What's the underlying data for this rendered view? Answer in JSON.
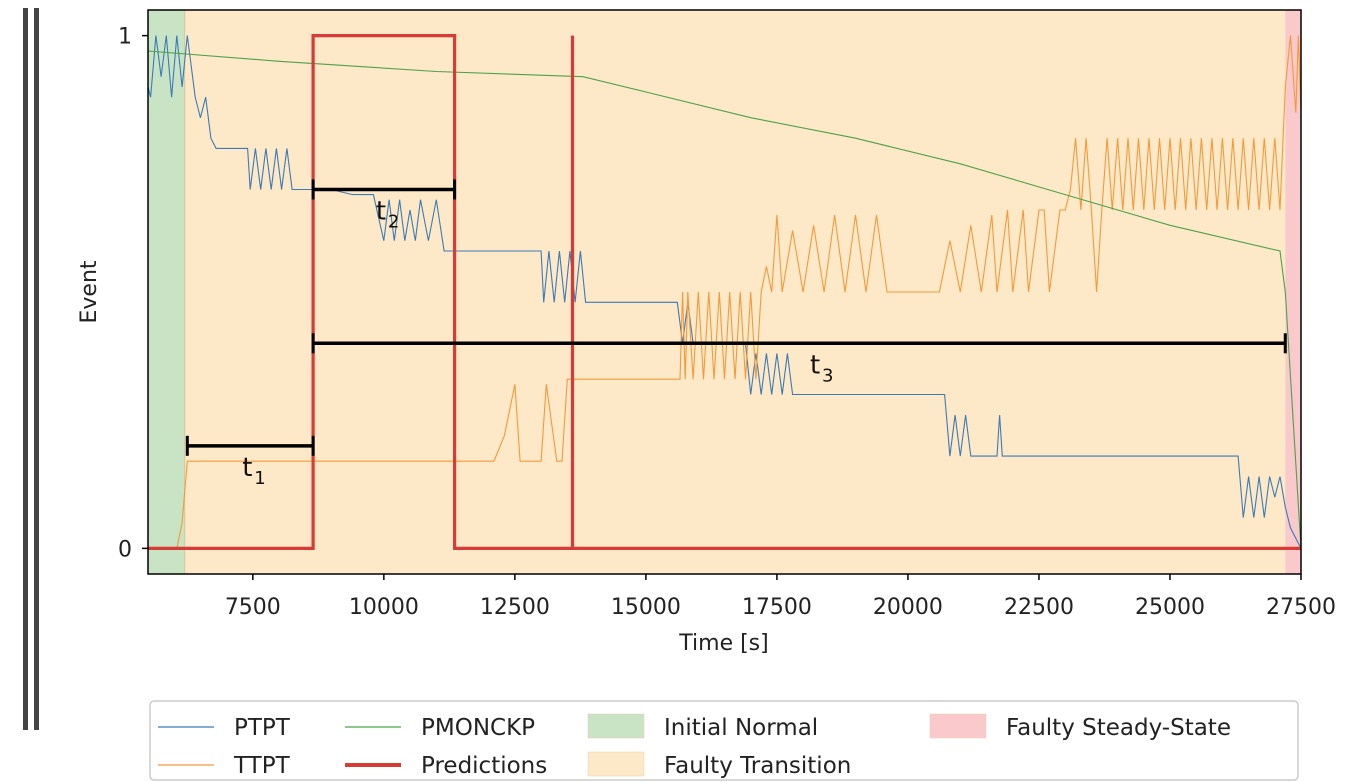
{
  "chart_data": {
    "type": "line",
    "xlabel": "Time [s]",
    "ylabel": "Event",
    "xlim": [
      5500,
      27500
    ],
    "ylim": [
      -0.05,
      1.05
    ],
    "x_ticks": [
      7500,
      10000,
      12500,
      15000,
      17500,
      20000,
      22500,
      25000,
      27500
    ],
    "y_ticks": [
      0,
      1
    ],
    "grid": false,
    "legend_placement": "below",
    "regions": [
      {
        "name": "Initial Normal",
        "x0": 5500,
        "x1": 6200,
        "color": "#c9e3c5"
      },
      {
        "name": "Faulty Transition",
        "x0": 6200,
        "x1": 27200,
        "color": "#fde8c8"
      },
      {
        "name": "Faulty Steady-State",
        "x0": 27200,
        "x1": 27500,
        "color": "#f9c9cc"
      }
    ],
    "series": [
      {
        "name": "PTPT",
        "color": "#3b7bb8",
        "width": 1.1,
        "points": [
          [
            5500,
            0.9
          ],
          [
            5550,
            0.88
          ],
          [
            5650,
            1.0
          ],
          [
            5750,
            0.92
          ],
          [
            5850,
            1.0
          ],
          [
            5950,
            0.88
          ],
          [
            6050,
            1.0
          ],
          [
            6150,
            0.9
          ],
          [
            6250,
            1.0
          ],
          [
            6400,
            0.88
          ],
          [
            6500,
            0.84
          ],
          [
            6600,
            0.88
          ],
          [
            6700,
            0.8
          ],
          [
            6800,
            0.78
          ],
          [
            7000,
            0.78
          ],
          [
            7200,
            0.78
          ],
          [
            7400,
            0.78
          ],
          [
            7450,
            0.7
          ],
          [
            7550,
            0.78
          ],
          [
            7650,
            0.7
          ],
          [
            7750,
            0.78
          ],
          [
            7850,
            0.7
          ],
          [
            7950,
            0.78
          ],
          [
            8050,
            0.7
          ],
          [
            8150,
            0.78
          ],
          [
            8250,
            0.7
          ],
          [
            8400,
            0.7
          ],
          [
            8600,
            0.7
          ],
          [
            9000,
            0.7
          ],
          [
            9400,
            0.69
          ],
          [
            9800,
            0.69
          ],
          [
            10000,
            0.6
          ],
          [
            10100,
            0.68
          ],
          [
            10200,
            0.6
          ],
          [
            10300,
            0.68
          ],
          [
            10400,
            0.6
          ],
          [
            10500,
            0.66
          ],
          [
            10600,
            0.6
          ],
          [
            10700,
            0.68
          ],
          [
            10850,
            0.6
          ],
          [
            11000,
            0.68
          ],
          [
            11150,
            0.58
          ],
          [
            11500,
            0.58
          ],
          [
            12000,
            0.58
          ],
          [
            12500,
            0.58
          ],
          [
            13000,
            0.58
          ],
          [
            13050,
            0.48
          ],
          [
            13150,
            0.58
          ],
          [
            13250,
            0.48
          ],
          [
            13350,
            0.58
          ],
          [
            13450,
            0.48
          ],
          [
            13550,
            0.58
          ],
          [
            13650,
            0.48
          ],
          [
            13750,
            0.58
          ],
          [
            13850,
            0.48
          ],
          [
            14500,
            0.48
          ],
          [
            15000,
            0.48
          ],
          [
            15600,
            0.48
          ],
          [
            15700,
            0.4
          ],
          [
            15800,
            0.48
          ],
          [
            15900,
            0.4
          ],
          [
            16000,
            0.4
          ],
          [
            16500,
            0.4
          ],
          [
            16900,
            0.4
          ],
          [
            17000,
            0.3
          ],
          [
            17100,
            0.38
          ],
          [
            17200,
            0.3
          ],
          [
            17300,
            0.38
          ],
          [
            17400,
            0.3
          ],
          [
            17500,
            0.38
          ],
          [
            17600,
            0.3
          ],
          [
            17700,
            0.38
          ],
          [
            17800,
            0.3
          ],
          [
            18500,
            0.3
          ],
          [
            19500,
            0.3
          ],
          [
            20700,
            0.3
          ],
          [
            20800,
            0.18
          ],
          [
            20900,
            0.26
          ],
          [
            21000,
            0.18
          ],
          [
            21100,
            0.26
          ],
          [
            21200,
            0.18
          ],
          [
            21700,
            0.18
          ],
          [
            21750,
            0.26
          ],
          [
            21800,
            0.18
          ],
          [
            22500,
            0.18
          ],
          [
            23500,
            0.18
          ],
          [
            25000,
            0.18
          ],
          [
            26000,
            0.18
          ],
          [
            26300,
            0.18
          ],
          [
            26400,
            0.06
          ],
          [
            26500,
            0.14
          ],
          [
            26600,
            0.06
          ],
          [
            26700,
            0.14
          ],
          [
            26800,
            0.06
          ],
          [
            26900,
            0.14
          ],
          [
            27000,
            0.1
          ],
          [
            27100,
            0.14
          ],
          [
            27200,
            0.08
          ],
          [
            27300,
            0.04
          ],
          [
            27500,
            0.0
          ]
        ]
      },
      {
        "name": "TTPT",
        "color": "#f39a3b",
        "width": 1.1,
        "points": [
          [
            5500,
            0.0
          ],
          [
            6050,
            0.0
          ],
          [
            6150,
            0.05
          ],
          [
            6250,
            0.17
          ],
          [
            7000,
            0.17
          ],
          [
            8000,
            0.17
          ],
          [
            9000,
            0.17
          ],
          [
            10000,
            0.17
          ],
          [
            11000,
            0.17
          ],
          [
            12000,
            0.17
          ],
          [
            12100,
            0.17
          ],
          [
            12300,
            0.22
          ],
          [
            12500,
            0.32
          ],
          [
            12600,
            0.17
          ],
          [
            12900,
            0.17
          ],
          [
            13000,
            0.17
          ],
          [
            13100,
            0.32
          ],
          [
            13300,
            0.17
          ],
          [
            13400,
            0.17
          ],
          [
            13500,
            0.33
          ],
          [
            13700,
            0.33
          ],
          [
            13800,
            0.33
          ],
          [
            14400,
            0.33
          ],
          [
            15600,
            0.33
          ],
          [
            15650,
            0.33
          ],
          [
            15700,
            0.5
          ],
          [
            15750,
            0.33
          ],
          [
            15800,
            0.5
          ],
          [
            15900,
            0.33
          ],
          [
            16000,
            0.5
          ],
          [
            16100,
            0.33
          ],
          [
            16200,
            0.5
          ],
          [
            16300,
            0.33
          ],
          [
            16400,
            0.5
          ],
          [
            16500,
            0.33
          ],
          [
            16600,
            0.5
          ],
          [
            16700,
            0.33
          ],
          [
            16800,
            0.5
          ],
          [
            16900,
            0.33
          ],
          [
            17000,
            0.5
          ],
          [
            17100,
            0.33
          ],
          [
            17200,
            0.5
          ],
          [
            17300,
            0.55
          ],
          [
            17400,
            0.5
          ],
          [
            17500,
            0.65
          ],
          [
            17600,
            0.5
          ],
          [
            17800,
            0.62
          ],
          [
            18000,
            0.5
          ],
          [
            18200,
            0.63
          ],
          [
            18400,
            0.5
          ],
          [
            18600,
            0.65
          ],
          [
            18800,
            0.5
          ],
          [
            19000,
            0.65
          ],
          [
            19200,
            0.5
          ],
          [
            19400,
            0.65
          ],
          [
            19600,
            0.5
          ],
          [
            19800,
            0.5
          ],
          [
            20000,
            0.5
          ],
          [
            20400,
            0.5
          ],
          [
            20600,
            0.5
          ],
          [
            20800,
            0.6
          ],
          [
            21000,
            0.5
          ],
          [
            21200,
            0.63
          ],
          [
            21400,
            0.5
          ],
          [
            21600,
            0.65
          ],
          [
            21700,
            0.5
          ],
          [
            21900,
            0.66
          ],
          [
            22000,
            0.5
          ],
          [
            22200,
            0.66
          ],
          [
            22300,
            0.5
          ],
          [
            22500,
            0.66
          ],
          [
            22600,
            0.66
          ],
          [
            22700,
            0.5
          ],
          [
            22900,
            0.66
          ],
          [
            23000,
            0.66
          ],
          [
            23100,
            0.7
          ],
          [
            23200,
            0.8
          ],
          [
            23300,
            0.66
          ],
          [
            23400,
            0.8
          ],
          [
            23500,
            0.66
          ],
          [
            23600,
            0.5
          ],
          [
            23700,
            0.66
          ],
          [
            23800,
            0.8
          ],
          [
            23900,
            0.66
          ],
          [
            24000,
            0.8
          ],
          [
            24100,
            0.66
          ],
          [
            24200,
            0.8
          ],
          [
            24300,
            0.66
          ],
          [
            24400,
            0.8
          ],
          [
            24500,
            0.66
          ],
          [
            24600,
            0.8
          ],
          [
            24700,
            0.66
          ],
          [
            24800,
            0.8
          ],
          [
            24900,
            0.66
          ],
          [
            25000,
            0.8
          ],
          [
            25100,
            0.66
          ],
          [
            25200,
            0.8
          ],
          [
            25300,
            0.66
          ],
          [
            25400,
            0.8
          ],
          [
            25500,
            0.66
          ],
          [
            25600,
            0.8
          ],
          [
            25700,
            0.66
          ],
          [
            25800,
            0.8
          ],
          [
            25900,
            0.66
          ],
          [
            26000,
            0.8
          ],
          [
            26100,
            0.66
          ],
          [
            26200,
            0.8
          ],
          [
            26300,
            0.66
          ],
          [
            26400,
            0.8
          ],
          [
            26500,
            0.66
          ],
          [
            26600,
            0.8
          ],
          [
            26700,
            0.66
          ],
          [
            26800,
            0.8
          ],
          [
            26900,
            0.66
          ],
          [
            27000,
            0.8
          ],
          [
            27100,
            0.66
          ],
          [
            27200,
            0.9
          ],
          [
            27300,
            1.0
          ],
          [
            27400,
            0.85
          ],
          [
            27450,
            1.0
          ],
          [
            27500,
            0.85
          ]
        ]
      },
      {
        "name": "PMONCKP",
        "color": "#4ba34b",
        "width": 1.1,
        "points": [
          [
            5500,
            0.97
          ],
          [
            8000,
            0.95
          ],
          [
            11000,
            0.93
          ],
          [
            13800,
            0.92
          ],
          [
            15000,
            0.89
          ],
          [
            17000,
            0.84
          ],
          [
            19000,
            0.8
          ],
          [
            21000,
            0.75
          ],
          [
            23000,
            0.69
          ],
          [
            25000,
            0.63
          ],
          [
            27100,
            0.58
          ],
          [
            27200,
            0.5
          ],
          [
            27500,
            0.0
          ]
        ]
      },
      {
        "name": "Predictions",
        "color": "#d73b36",
        "width": 3.2,
        "points": [
          [
            5500,
            0
          ],
          [
            8650,
            0
          ],
          [
            8650,
            1
          ],
          [
            11350,
            1
          ],
          [
            11350,
            0
          ],
          [
            13600,
            0
          ],
          [
            13600,
            1
          ],
          [
            13600,
            0
          ],
          [
            27500,
            0
          ]
        ]
      }
    ],
    "intervals": [
      {
        "label": "t",
        "subscript": "1",
        "x0": 6250,
        "x1": 8650,
        "y": 0.2
      },
      {
        "label": "t",
        "subscript": "2",
        "x0": 8650,
        "x1": 11350,
        "y": 0.7
      },
      {
        "label": "t",
        "subscript": "3",
        "x0": 8650,
        "x1": 27200,
        "y": 0.4
      }
    ],
    "legend": [
      {
        "label": "PTPT",
        "kind": "line",
        "color": "#3b7bb8"
      },
      {
        "label": "TTPT",
        "kind": "line",
        "color": "#f39a3b"
      },
      {
        "label": "PMONCKP",
        "kind": "line",
        "color": "#4ba34b"
      },
      {
        "label": "Predictions",
        "kind": "thick-line",
        "color": "#d73b36"
      },
      {
        "label": "Initial Normal",
        "kind": "patch",
        "color": "#c9e3c5"
      },
      {
        "label": "Faulty Transition",
        "kind": "patch",
        "color": "#fde8c8"
      },
      {
        "label": "Faulty Steady-State",
        "kind": "patch",
        "color": "#f9c9cc"
      }
    ]
  }
}
